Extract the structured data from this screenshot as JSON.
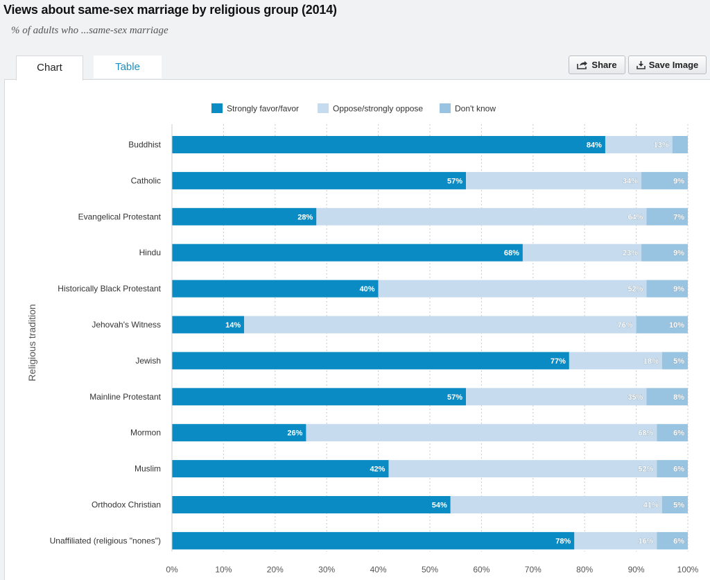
{
  "title": "Views about same-sex marriage by religious group (2014)",
  "subtitle": "% of adults who ...same-sex marriage",
  "tabs": {
    "chart": "Chart",
    "table": "Table"
  },
  "toolbar": {
    "share_label": "Share",
    "save_label": "Save Image",
    "share_icon": "share-icon",
    "save_icon": "download-icon"
  },
  "colors": {
    "favor": "#0a8bc3",
    "oppose": "#c6dcee",
    "dontknow": "#98c4e2"
  },
  "chart_data": {
    "type": "bar",
    "orientation": "horizontal",
    "stacked": true,
    "ylabel": "Religious tradition",
    "xlim": [
      0,
      100
    ],
    "x_ticks": [
      "0%",
      "10%",
      "20%",
      "30%",
      "40%",
      "50%",
      "60%",
      "70%",
      "80%",
      "90%",
      "100%"
    ],
    "legend_position": "top",
    "grid": "vertical dotted",
    "categories": [
      "Buddhist",
      "Catholic",
      "Evangelical Protestant",
      "Hindu",
      "Historically Black Protestant",
      "Jehovah's Witness",
      "Jewish",
      "Mainline Protestant",
      "Mormon",
      "Muslim",
      "Orthodox Christian",
      "Unaffiliated (religious \"nones\")"
    ],
    "series": [
      {
        "name": "Strongly favor/favor",
        "values": [
          84,
          57,
          28,
          68,
          40,
          14,
          77,
          57,
          26,
          42,
          54,
          78
        ],
        "labels": [
          "84%",
          "57%",
          "28%",
          "68%",
          "40%",
          "14%",
          "77%",
          "57%",
          "26%",
          "42%",
          "54%",
          "78%"
        ]
      },
      {
        "name": "Oppose/strongly oppose",
        "values": [
          13,
          34,
          64,
          23,
          52,
          76,
          18,
          35,
          68,
          52,
          41,
          16
        ],
        "labels": [
          "13%",
          "34%",
          "64%",
          "23%",
          "52%",
          "76%",
          "18%",
          "35%",
          "68%",
          "52%",
          "41%",
          "16%"
        ]
      },
      {
        "name": "Don't know",
        "values": [
          3,
          9,
          7,
          9,
          9,
          10,
          5,
          8,
          6,
          6,
          5,
          6
        ],
        "labels": [
          "",
          "9%",
          "7%",
          "9%",
          "9%",
          "10%",
          "5%",
          "8%",
          "6%",
          "6%",
          "5%",
          "6%"
        ]
      }
    ]
  }
}
